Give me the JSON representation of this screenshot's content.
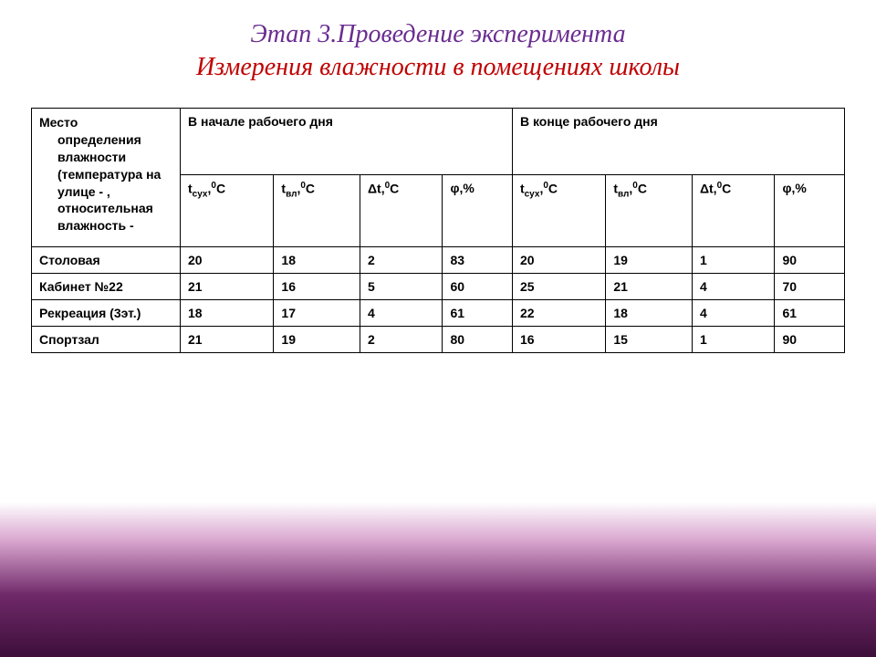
{
  "title": {
    "line1": "Этап 3.Проведение эксперимента",
    "line2": "Измерения влажности в помещениях школы"
  },
  "headers": {
    "place_word1": "Место",
    "place_rest": "определения влажности (температура на улице - , относительная влажность -",
    "start": "В начале рабочего дня",
    "end": "В конце рабочего дня",
    "cols": {
      "t_dry": "t",
      "t_dry_sub": "сух",
      "t_wet": "t",
      "t_wet_sub": "вл",
      "dt": "Δt,",
      "degC": "⁰С",
      "phi": "φ,%"
    }
  },
  "rows": [
    {
      "label": "Столовая",
      "start": [
        "20",
        "18",
        "2",
        "83"
      ],
      "end": [
        "20",
        "19",
        "1",
        "90"
      ]
    },
    {
      "label": "Кабинет №22",
      "start": [
        "21",
        "16",
        "5",
        "60"
      ],
      "end": [
        "25",
        "21",
        "4",
        "70"
      ]
    },
    {
      "label": "Рекреация (3эт.)",
      "start": [
        "18",
        "17",
        "4",
        "61"
      ],
      "end": [
        "22",
        "18",
        "4",
        "61"
      ]
    },
    {
      "label": "Спортзал",
      "start": [
        "21",
        "19",
        "2",
        "80"
      ],
      "end": [
        "16",
        "15",
        "1",
        "90"
      ]
    }
  ],
  "style": {
    "title_color1": "#6a2c91",
    "title_color2": "#c00000",
    "border_color": "#000000",
    "bg": "#ffffff",
    "gradient_from": "#ffffff",
    "gradient_mid": "#d9a6cf",
    "gradient_to": "#3d0f3a",
    "title_fontsize": 28,
    "cell_fontsize": 14
  }
}
